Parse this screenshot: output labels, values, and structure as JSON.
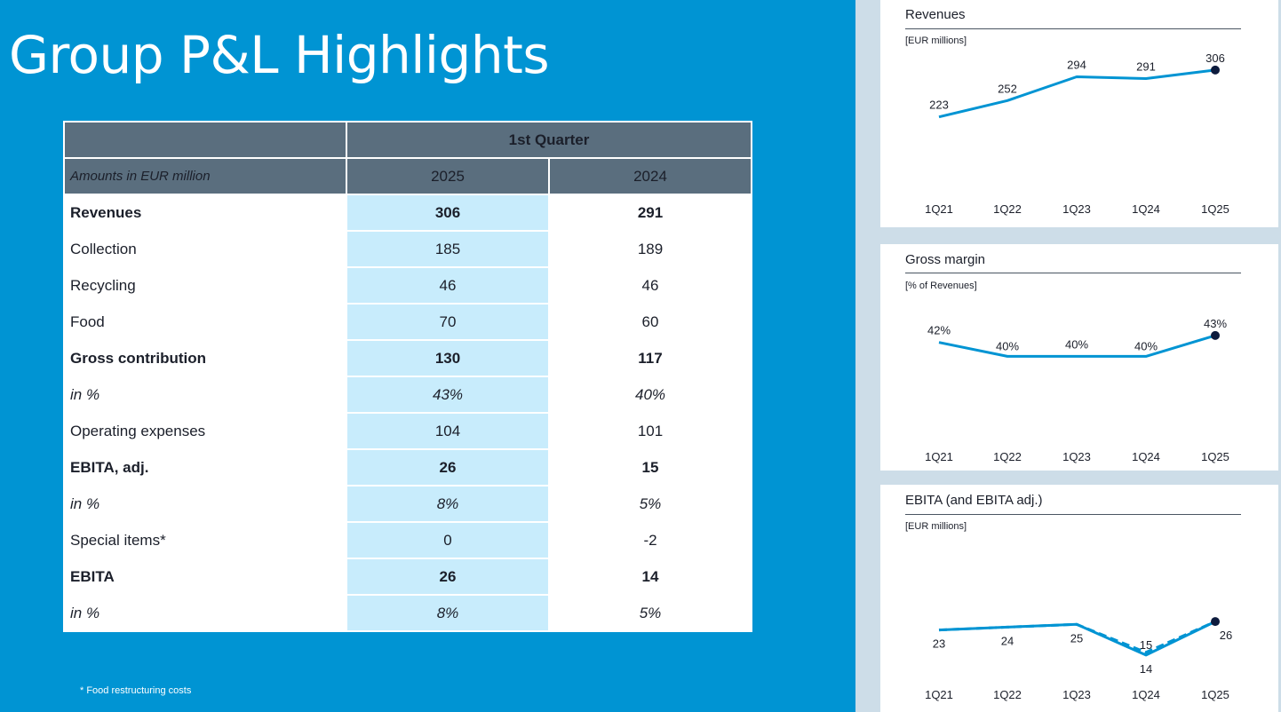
{
  "title": "Group P&L Highlights",
  "table": {
    "header_period": "1st Quarter",
    "header_label": "Amounts in EUR million",
    "col_2025": "2025",
    "col_2024": "2024",
    "rows": [
      {
        "label": "Revenues",
        "v2025": "306",
        "v2024": "291",
        "style": "bold"
      },
      {
        "label": "Collection",
        "v2025": "185",
        "v2024": "189",
        "style": "normal"
      },
      {
        "label": "Recycling",
        "v2025": "46",
        "v2024": "46",
        "style": "normal"
      },
      {
        "label": "Food",
        "v2025": "70",
        "v2024": "60",
        "style": "normal"
      },
      {
        "label": "Gross contribution",
        "v2025": "130",
        "v2024": "117",
        "style": "bold"
      },
      {
        "label": "in %",
        "v2025": "43%",
        "v2024": "40%",
        "style": "italic"
      },
      {
        "label": "Operating expenses",
        "v2025": "104",
        "v2024": "101",
        "style": "normal"
      },
      {
        "label": "EBITA, adj.",
        "v2025": "26",
        "v2024": "15",
        "style": "bold"
      },
      {
        "label": "in %",
        "v2025": "8%",
        "v2024": "5%",
        "style": "italic"
      },
      {
        "label": "Special items*",
        "v2025": "0",
        "v2024": "-2",
        "style": "normal"
      },
      {
        "label": "EBITA",
        "v2025": "26",
        "v2024": "14",
        "style": "bold"
      },
      {
        "label": "in %",
        "v2025": "8%",
        "v2024": "5%",
        "style": "italic"
      }
    ]
  },
  "footnote": "* Food restructuring costs",
  "colors": {
    "background": "#0094d3",
    "header": "#5a6e7e",
    "highlight": "#c8ecfc",
    "line": "#0094d3",
    "marker": "#0d1b3d"
  },
  "chart_data": [
    {
      "type": "line",
      "title": "Revenues",
      "unit": "[EUR millions]",
      "categories": [
        "1Q21",
        "1Q22",
        "1Q23",
        "1Q24",
        "1Q25"
      ],
      "series": [
        {
          "values": [
            223,
            252,
            294,
            291,
            306
          ]
        }
      ],
      "labels": [
        "223",
        "252",
        "294",
        "291",
        "306"
      ],
      "ylim": [
        100,
        320
      ],
      "grid": false,
      "marker_on_last": true
    },
    {
      "type": "line",
      "title": "Gross margin",
      "unit": "[% of Revenues]",
      "categories": [
        "1Q21",
        "1Q22",
        "1Q23",
        "1Q24",
        "1Q25"
      ],
      "series": [
        {
          "values": [
            42,
            40,
            40,
            40,
            43
          ]
        }
      ],
      "labels": [
        "42%",
        "40%",
        "40%",
        "40%",
        "43%"
      ],
      "ylim": [
        37,
        44
      ],
      "grid": false,
      "marker_on_last": true
    },
    {
      "type": "line",
      "title": "EBITA (and EBITA adj.)",
      "unit": "[EUR millions]",
      "categories": [
        "1Q21",
        "1Q22",
        "1Q23",
        "1Q24",
        "1Q25"
      ],
      "series": [
        {
          "values": [
            23,
            24,
            25,
            15,
            26
          ],
          "dash": true
        },
        {
          "values": [
            23,
            24,
            25,
            14,
            26
          ],
          "dash": false
        }
      ],
      "labels": [
        "23",
        "24",
        "25",
        "15",
        "26"
      ],
      "extra_label": {
        "index": 3,
        "text": "14"
      },
      "ylim": [
        0,
        40
      ],
      "grid": false,
      "marker_on_last": true
    }
  ]
}
